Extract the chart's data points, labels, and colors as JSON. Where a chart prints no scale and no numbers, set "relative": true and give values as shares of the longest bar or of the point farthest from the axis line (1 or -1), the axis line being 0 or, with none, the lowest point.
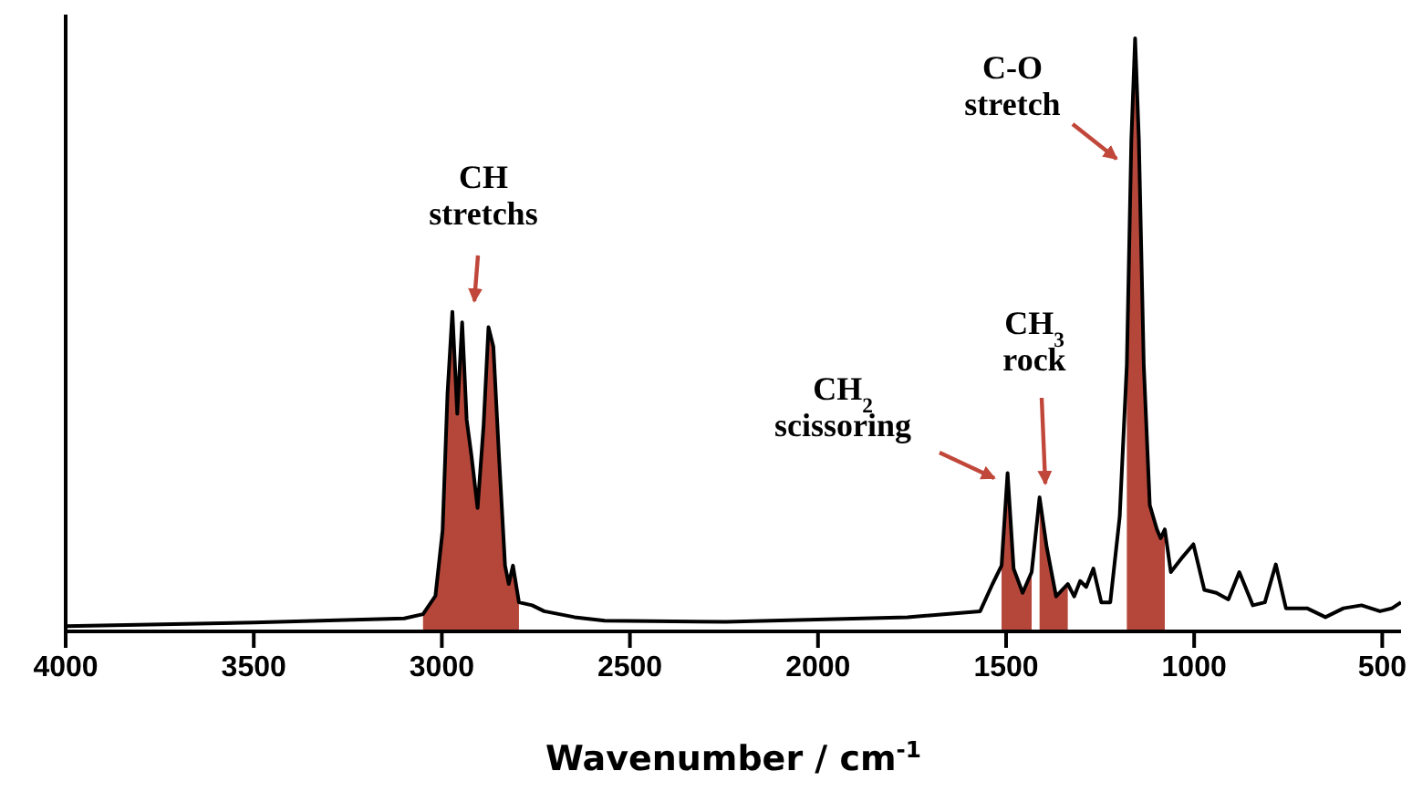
{
  "chart_data": {
    "type": "line",
    "relative": true,
    "xlabel": "Wavenumber / cm$^{-1}$",
    "xlim": [
      4000,
      450
    ],
    "xticks": [
      4000,
      3500,
      3000,
      2500,
      2000,
      1500,
      1000,
      500
    ],
    "grid": false,
    "legend": false,
    "marker": "none",
    "line_style": "solid",
    "x": [
      4000,
      3500,
      3100,
      3050,
      3017,
      2998,
      2985,
      2972,
      2959,
      2946,
      2934,
      2921,
      2905,
      2889,
      2876,
      2863,
      2848,
      2832,
      2822,
      2811,
      2795,
      2760,
      2728,
      2647,
      2567,
      2245,
      1762,
      1569,
      1536,
      1512,
      1496,
      1480,
      1456,
      1432,
      1411,
      1392,
      1367,
      1336,
      1319,
      1303,
      1287,
      1268,
      1247,
      1223,
      1198,
      1179,
      1167,
      1157,
      1147,
      1134,
      1118,
      1099,
      1089,
      1078,
      1062,
      1030,
      1002,
      973,
      941,
      909,
      880,
      844,
      812,
      783,
      756,
      700,
      651,
      603,
      555,
      506,
      474,
      450
    ],
    "series": [
      {
        "color": "#000000",
        "values": [
          0.009,
          0.015,
          0.022,
          0.029,
          0.06,
          0.17,
          0.4,
          0.539,
          0.367,
          0.521,
          0.357,
          0.295,
          0.208,
          0.347,
          0.513,
          0.48,
          0.295,
          0.111,
          0.08,
          0.111,
          0.049,
          0.044,
          0.034,
          0.024,
          0.018,
          0.016,
          0.024,
          0.034,
          0.08,
          0.111,
          0.267,
          0.106,
          0.065,
          0.1,
          0.226,
          0.142,
          0.059,
          0.08,
          0.059,
          0.085,
          0.075,
          0.106,
          0.049,
          0.049,
          0.193,
          0.449,
          0.829,
          1,
          0.829,
          0.449,
          0.213,
          0.172,
          0.157,
          0.172,
          0.1,
          0.126,
          0.147,
          0.07,
          0.065,
          0.054,
          0.1,
          0.044,
          0.049,
          0.113,
          0.039,
          0.039,
          0.024,
          0.039,
          0.044,
          0.034,
          0.039,
          0.049
        ]
      },
      {
        "type": "area",
        "color": "#b5473a",
        "x": [
          3050,
          3017,
          2998,
          2985,
          2972,
          2959,
          2946,
          2934,
          2921,
          2905,
          2889,
          2876,
          2863,
          2848,
          2832,
          2822,
          2811,
          2795
        ],
        "values": [
          0.029,
          0.06,
          0.17,
          0.4,
          0.539,
          0.367,
          0.521,
          0.357,
          0.295,
          0.208,
          0.347,
          0.513,
          0.48,
          0.295,
          0.111,
          0.08,
          0.111,
          0.049
        ]
      },
      {
        "type": "area",
        "color": "#b5473a",
        "x": [
          1512,
          1496,
          1480,
          1456,
          1432
        ],
        "values": [
          0.111,
          0.267,
          0.106,
          0.065,
          0.1
        ]
      },
      {
        "type": "area",
        "color": "#b5473a",
        "x": [
          1411,
          1392,
          1367,
          1336
        ],
        "values": [
          0.226,
          0.142,
          0.059,
          0.08
        ]
      },
      {
        "type": "area",
        "color": "#b5473a",
        "x": [
          1179,
          1167,
          1157,
          1147,
          1134,
          1118,
          1099,
          1089,
          1078
        ],
        "values": [
          0.449,
          0.829,
          1,
          0.829,
          0.449,
          0.213,
          0.172,
          0.157,
          0.172
        ]
      }
    ],
    "annotations": [
      "CH stretchs",
      "CH$_{2}$ scissoring",
      "CH$_{3}$ rock",
      "C-O stretch"
    ]
  }
}
